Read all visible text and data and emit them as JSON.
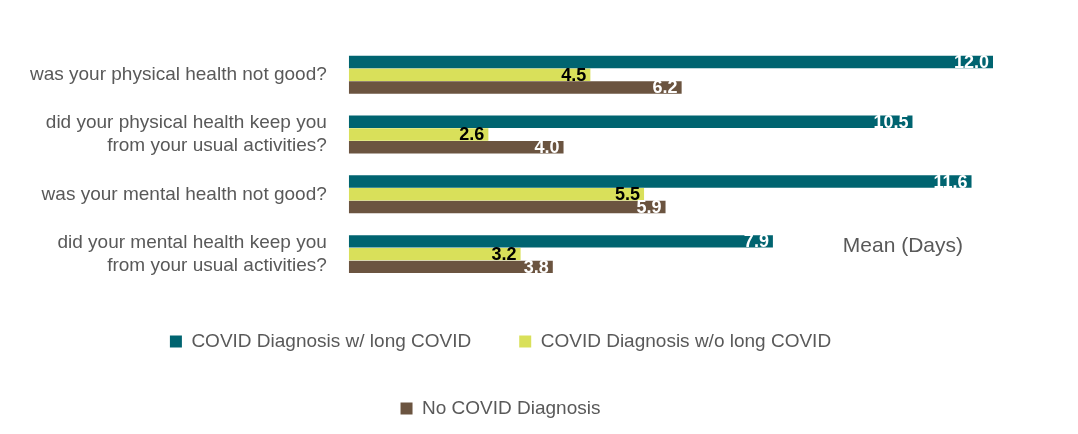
{
  "chart_data": {
    "type": "bar",
    "orientation": "horizontal",
    "categories": [
      "was your physical health not good?",
      "did your physical health keep you from your usual activities?",
      "was your mental health not good?",
      "did your mental health keep you from your usual activities?"
    ],
    "series": [
      {
        "name": "COVID Diagnosis w/ long COVID",
        "color": "#006470",
        "values": [
          12.0,
          10.5,
          11.6,
          7.9
        ],
        "value_labels": [
          "12.0",
          "10.5",
          "11.6",
          "7.9"
        ]
      },
      {
        "name": "COVID Diagnosis w/o long COVID",
        "color": "#d9e05a",
        "values": [
          4.5,
          2.6,
          5.5,
          3.2
        ],
        "value_labels": [
          "4.5",
          "2.6",
          "5.5",
          "3.2"
        ]
      },
      {
        "name": "No COVID Diagnosis",
        "color": "#6b5440",
        "values": [
          6.2,
          4.0,
          5.9,
          3.8
        ],
        "value_labels": [
          "6.2",
          "4.0",
          "5.9",
          "3.8"
        ]
      }
    ],
    "xlabel": "Mean (Days)",
    "legend": "bottom",
    "grid": false,
    "tick_labels": "y"
  }
}
